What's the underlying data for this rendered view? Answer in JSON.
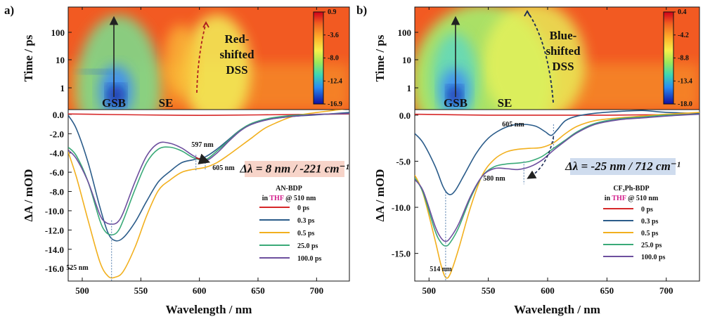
{
  "chart_data": [
    {
      "panel": "a)",
      "type": "line",
      "heatmap": {
        "type": "heatmap",
        "ylabel": "Time / ps",
        "yticks": [
          "100",
          "10",
          "1"
        ],
        "colorbar_ticks": [
          "0.9",
          "-3.6",
          "-8.0",
          "-12.4",
          "-16.9"
        ],
        "labels": [
          "GSB",
          "SE"
        ],
        "annotation": "Red-shifted DSS",
        "annotation_lines": [
          "Red-",
          "shifted",
          "DSS"
        ],
        "annotation_color": "#b02020"
      },
      "xlabel": "Wavelength / nm",
      "ylabel": "ΔA / mOD",
      "xlim": [
        488,
        728
      ],
      "ylim": [
        -17.3,
        0.5
      ],
      "xticks": [
        "500",
        "550",
        "600",
        "650",
        "700"
      ],
      "yticks": [
        "0.0",
        "-2.0",
        "-4.0",
        "-6.0",
        "-8.0",
        "-10.0",
        "-12.0",
        "-14.0",
        "-16.0"
      ],
      "legend_title": [
        "AN-BDP",
        "in",
        "THF",
        "@ 510 nm"
      ],
      "shift_box": "Δλ = 8 nm / -221 cm⁻¹",
      "shift_box_color": "#f7d4c9",
      "markers": [
        "597 nm",
        "605 nm",
        "525 nm"
      ],
      "series": [
        {
          "name": "0 ps",
          "color": "#d62728",
          "x": [
            488,
            550,
            600,
            650,
            728
          ],
          "y": [
            0.05,
            -0.05,
            -0.1,
            -0.05,
            0.05
          ]
        },
        {
          "name": "0.3 ps",
          "color": "#2b5c8a",
          "x": [
            488,
            495,
            505,
            515,
            522,
            528,
            535,
            545,
            555,
            565,
            575,
            585,
            595,
            605,
            615,
            625,
            635,
            645,
            660,
            680,
            700,
            728
          ],
          "y": [
            -0.1,
            -1.5,
            -5.0,
            -9.6,
            -12.3,
            -13.1,
            -12.8,
            -11.2,
            -9.0,
            -7.0,
            -5.9,
            -5.0,
            -4.7,
            -4.4,
            -3.6,
            -2.6,
            -1.6,
            -1.0,
            -0.5,
            -0.2,
            -0.05,
            0.2
          ]
        },
        {
          "name": "0.5 ps",
          "color": "#f2b01e",
          "x": [
            488,
            495,
            505,
            515,
            522,
            528,
            535,
            545,
            555,
            565,
            575,
            585,
            595,
            605,
            615,
            625,
            635,
            645,
            655,
            665,
            680,
            700,
            728
          ],
          "y": [
            -3.9,
            -6.5,
            -11.0,
            -15.3,
            -16.8,
            -16.9,
            -16.3,
            -13.8,
            -10.5,
            -7.9,
            -6.8,
            -6.0,
            -5.7,
            -5.5,
            -5.0,
            -4.2,
            -3.3,
            -2.4,
            -1.5,
            -0.9,
            -0.2,
            0.2,
            0.6
          ]
        },
        {
          "name": "25.0 ps",
          "color": "#3aaa78",
          "x": [
            488,
            495,
            505,
            515,
            520,
            525,
            530,
            535,
            545,
            555,
            565,
            575,
            585,
            595,
            605,
            615,
            625,
            635,
            645,
            660,
            680,
            700,
            728
          ],
          "y": [
            -3.4,
            -4.3,
            -7.0,
            -11.0,
            -12.2,
            -12.5,
            -12.2,
            -11.0,
            -7.8,
            -5.0,
            -3.6,
            -3.4,
            -3.8,
            -4.5,
            -4.7,
            -3.8,
            -2.7,
            -1.6,
            -0.9,
            -0.4,
            -0.1,
            0.0,
            0.1
          ]
        },
        {
          "name": "100.0 ps",
          "color": "#6d4f9e",
          "x": [
            488,
            495,
            505,
            515,
            520,
            525,
            530,
            535,
            545,
            555,
            565,
            575,
            585,
            595,
            605,
            615,
            625,
            635,
            645,
            660,
            680,
            700,
            728
          ],
          "y": [
            -3.7,
            -4.6,
            -7.0,
            -10.4,
            -11.2,
            -11.4,
            -11.2,
            -10.2,
            -7.0,
            -4.3,
            -3.0,
            -3.0,
            -3.5,
            -4.3,
            -4.8,
            -4.0,
            -2.8,
            -1.7,
            -1.0,
            -0.5,
            -0.2,
            0.0,
            0.1
          ]
        }
      ]
    },
    {
      "panel": "b)",
      "type": "line",
      "heatmap": {
        "type": "heatmap",
        "ylabel": "Time / ps",
        "yticks": [
          "100",
          "10",
          "1"
        ],
        "colorbar_ticks": [
          "0.4",
          "-4.2",
          "-8.8",
          "-13.4",
          "-18.0"
        ],
        "labels": [
          "GSB",
          "SE"
        ],
        "annotation": "Blue-shifted DSS",
        "annotation_lines": [
          "Blue-",
          "shifted",
          "DSS"
        ],
        "annotation_color": "#1a2a55"
      },
      "xlabel": "Wavelength / nm",
      "ylabel": "ΔA / mOD",
      "xlim": [
        488,
        728
      ],
      "ylim": [
        -18.0,
        0.6
      ],
      "xticks": [
        "500",
        "550",
        "600",
        "650",
        "700"
      ],
      "yticks": [
        "0.0",
        "-5.0",
        "-10.0",
        "-15.0"
      ],
      "legend_title": [
        "CF₃Ph-BDP",
        "in",
        "THF",
        "@ 510 nm"
      ],
      "shift_box": "Δλ = -25 nm / 712 cm⁻¹",
      "shift_box_color": "#cfdcee",
      "markers": [
        "605 nm",
        "580 nm",
        "514 nm"
      ],
      "series": [
        {
          "name": "0 ps",
          "color": "#d62728",
          "x": [
            488,
            550,
            600,
            650,
            728
          ],
          "y": [
            0.1,
            0.0,
            0.0,
            0.0,
            0.1
          ]
        },
        {
          "name": "0.3 ps",
          "color": "#2b5c8a",
          "x": [
            488,
            495,
            505,
            512,
            517,
            522,
            530,
            540,
            550,
            560,
            570,
            580,
            590,
            598,
            603,
            608,
            615,
            625,
            640,
            660,
            680,
            700,
            728
          ],
          "y": [
            -2.0,
            -3.0,
            -5.5,
            -7.8,
            -8.6,
            -8.2,
            -6.4,
            -4.1,
            -2.5,
            -1.6,
            -1.1,
            -1.0,
            -1.2,
            -1.8,
            -2.2,
            -1.6,
            -0.6,
            -0.1,
            0.2,
            0.4,
            0.5,
            0.3,
            0.2
          ]
        },
        {
          "name": "0.5 ps",
          "color": "#f2b01e",
          "x": [
            488,
            495,
            505,
            510,
            514,
            518,
            525,
            535,
            545,
            555,
            565,
            575,
            585,
            595,
            605,
            615,
            625,
            640,
            660,
            680,
            700,
            728
          ],
          "y": [
            -6.5,
            -8.5,
            -13.5,
            -16.2,
            -17.6,
            -17.2,
            -14.5,
            -10.0,
            -6.5,
            -4.8,
            -4.0,
            -3.7,
            -3.6,
            -3.5,
            -3.0,
            -2.0,
            -1.2,
            -0.6,
            -0.3,
            -0.1,
            0.1,
            0.3
          ]
        },
        {
          "name": "25.0 ps",
          "color": "#3aaa78",
          "x": [
            488,
            495,
            505,
            510,
            514,
            518,
            525,
            535,
            545,
            555,
            565,
            575,
            585,
            595,
            605,
            615,
            625,
            640,
            660,
            680,
            700,
            728
          ],
          "y": [
            -6.8,
            -8.4,
            -12.5,
            -13.8,
            -14.2,
            -13.8,
            -12.2,
            -9.0,
            -6.6,
            -5.6,
            -5.3,
            -5.2,
            -5.0,
            -4.5,
            -3.6,
            -2.7,
            -1.8,
            -0.9,
            -0.4,
            -0.2,
            0.0,
            0.1
          ]
        },
        {
          "name": "100.0 ps",
          "color": "#6d4f9e",
          "x": [
            488,
            495,
            505,
            510,
            514,
            518,
            525,
            535,
            545,
            555,
            565,
            575,
            585,
            595,
            605,
            615,
            625,
            640,
            660,
            680,
            700,
            728
          ],
          "y": [
            -7.0,
            -8.2,
            -12.0,
            -13.3,
            -13.7,
            -13.3,
            -11.8,
            -8.8,
            -6.6,
            -5.8,
            -5.8,
            -5.9,
            -5.6,
            -4.9,
            -3.8,
            -2.8,
            -1.9,
            -1.0,
            -0.5,
            -0.3,
            -0.1,
            0.1
          ]
        }
      ]
    }
  ]
}
